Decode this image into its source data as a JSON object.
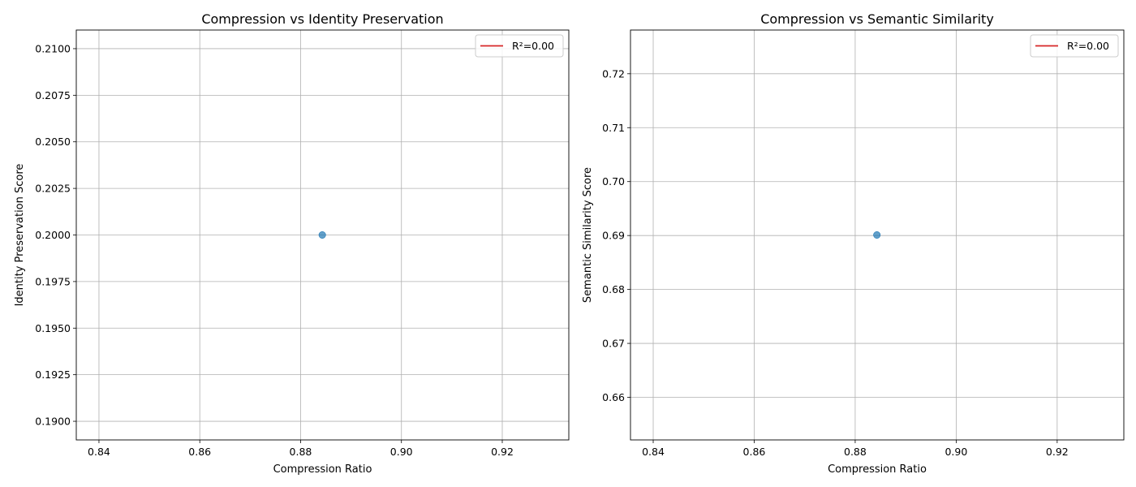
{
  "chart_data": [
    {
      "type": "scatter",
      "title": "Compression vs Identity Preservation",
      "xlabel": "Compression Ratio",
      "ylabel": "Identity Preservation Score",
      "xlim": [
        0.8355,
        0.9332
      ],
      "ylim": [
        0.189,
        0.211
      ],
      "xticks": [
        "0.84",
        "0.86",
        "0.88",
        "0.90",
        "0.92"
      ],
      "yticks": [
        "0.1900",
        "0.1925",
        "0.1950",
        "0.1975",
        "0.2000",
        "0.2025",
        "0.2050",
        "0.2075",
        "0.2100"
      ],
      "grid": true,
      "legend_position": "top-right",
      "series": [
        {
          "points": [
            {
              "x": 0.8843,
              "y": 0.2
            }
          ],
          "color": "#1f77b4"
        },
        {
          "name": "R²=0.00",
          "kind": "fit-line",
          "color": "#d62728"
        }
      ]
    },
    {
      "type": "scatter",
      "title": "Compression vs Semantic Similarity",
      "xlabel": "Compression Ratio",
      "ylabel": "Semantic Similarity Score",
      "xlim": [
        0.8355,
        0.9332
      ],
      "ylim": [
        0.6521,
        0.7281
      ],
      "xticks": [
        "0.84",
        "0.86",
        "0.88",
        "0.90",
        "0.92"
      ],
      "yticks": [
        "0.66",
        "0.67",
        "0.68",
        "0.69",
        "0.70",
        "0.71",
        "0.72"
      ],
      "grid": true,
      "legend_position": "top-right",
      "series": [
        {
          "points": [
            {
              "x": 0.8843,
              "y": 0.6901
            }
          ],
          "color": "#1f77b4"
        },
        {
          "name": "R²=0.00",
          "kind": "fit-line",
          "color": "#d62728"
        }
      ]
    }
  ]
}
